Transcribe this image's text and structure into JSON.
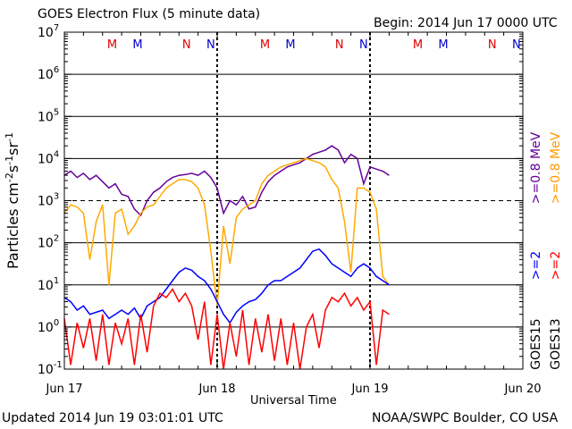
{
  "chart_data": {
    "type": "line",
    "title": "GOES Electron Flux (5 minute data)",
    "begin": "Begin: 2014 Jun 17 0000 UTC",
    "xlabel": "Universal Time",
    "ylabel_parts": [
      "Particles cm",
      "-2",
      "s",
      "-1",
      "sr",
      "-1"
    ],
    "x_ticks": [
      "Jun 17",
      "Jun 18",
      "Jun 19",
      "Jun 20"
    ],
    "xlim": [
      0,
      72
    ],
    "ylim_exp": [
      -1,
      7
    ],
    "y_tick_labels": [
      {
        "base": "10",
        "exp": "-1"
      },
      {
        "base": "10",
        "exp": "0"
      },
      {
        "base": "10",
        "exp": "1"
      },
      {
        "base": "10",
        "exp": "2"
      },
      {
        "base": "10",
        "exp": "3"
      },
      {
        "base": "10",
        "exp": "4"
      },
      {
        "base": "10",
        "exp": "5"
      },
      {
        "base": "10",
        "exp": "6"
      },
      {
        "base": "10",
        "exp": "7"
      }
    ],
    "day_boundaries_h": [
      24,
      48
    ],
    "threshold_exp": 3,
    "mn_markers": [
      {
        "h": 7.5,
        "label": "M",
        "color": "#dd0000"
      },
      {
        "h": 11.5,
        "label": "M",
        "color": "#0000cc"
      },
      {
        "h": 19.2,
        "label": "N",
        "color": "#dd0000"
      },
      {
        "h": 23.0,
        "label": "N",
        "color": "#0000cc"
      },
      {
        "h": 31.5,
        "label": "M",
        "color": "#dd0000"
      },
      {
        "h": 35.5,
        "label": "M",
        "color": "#0000cc"
      },
      {
        "h": 43.2,
        "label": "N",
        "color": "#dd0000"
      },
      {
        "h": 47.0,
        "label": "N",
        "color": "#0000cc"
      },
      {
        "h": 55.5,
        "label": "M",
        "color": "#dd0000"
      },
      {
        "h": 59.5,
        "label": "M",
        "color": "#0000cc"
      },
      {
        "h": 67.2,
        "label": "N",
        "color": "#dd0000"
      },
      {
        "h": 71.0,
        "label": "N",
        "color": "#0000cc"
      }
    ],
    "side_labels": [
      {
        "text": ">=0.8 MeV",
        "color": "#660099"
      },
      {
        "text": ">=0.8 MeV",
        "color": "#ff9900"
      },
      {
        "text": ">=2",
        "color": "#0000ff"
      },
      {
        "text": ">=2",
        "color": "#ff0000"
      },
      {
        "text": "GOES15",
        "color": "#000000"
      },
      {
        "text": "GOES13",
        "color": "#000000"
      }
    ],
    "series": [
      {
        "name": "GOES15 >=0.8 MeV",
        "color": "#660099",
        "x": [
          0,
          1,
          2,
          3,
          4,
          5,
          6,
          7,
          8,
          9,
          10,
          11,
          12,
          13,
          14,
          15,
          16,
          17,
          18,
          19,
          20,
          21,
          22,
          23,
          24,
          25,
          26,
          27,
          28,
          29,
          30,
          31,
          32,
          33,
          34,
          35,
          36,
          37,
          38,
          39,
          40,
          41,
          42,
          43,
          44,
          45,
          46,
          47,
          48,
          49,
          50,
          51
        ],
        "y": [
          3.6,
          3.7,
          3.55,
          3.65,
          3.5,
          3.6,
          3.45,
          3.3,
          3.4,
          3.15,
          3.1,
          2.8,
          2.65,
          3.0,
          3.2,
          3.3,
          3.45,
          3.55,
          3.6,
          3.62,
          3.65,
          3.6,
          3.7,
          3.55,
          3.3,
          2.7,
          3.0,
          2.9,
          3.1,
          2.8,
          2.85,
          3.2,
          3.45,
          3.6,
          3.7,
          3.8,
          3.85,
          3.9,
          4.0,
          4.1,
          4.15,
          4.2,
          4.3,
          4.2,
          3.9,
          4.1,
          4.0,
          3.4,
          3.8,
          3.75,
          3.7,
          3.6
        ]
      },
      {
        "name": "GOES13 >=0.8 MeV",
        "color": "#ffaa00",
        "x": [
          0,
          1,
          2,
          3,
          4,
          5,
          6,
          7,
          8,
          9,
          10,
          11,
          12,
          13,
          14,
          15,
          16,
          17,
          18,
          19,
          20,
          21,
          22,
          23,
          24,
          25,
          26,
          27,
          28,
          29,
          30,
          31,
          32,
          33,
          34,
          35,
          36,
          37,
          38,
          39,
          40,
          41,
          42,
          43,
          44,
          45,
          46,
          47,
          48,
          49,
          50,
          51
        ],
        "y": [
          2.7,
          2.9,
          2.85,
          2.7,
          1.6,
          2.5,
          2.9,
          1.0,
          2.7,
          2.8,
          2.2,
          2.4,
          2.7,
          2.85,
          2.9,
          3.1,
          3.3,
          3.4,
          3.5,
          3.5,
          3.45,
          3.3,
          2.9,
          1.8,
          0.5,
          2.4,
          1.5,
          2.6,
          2.8,
          2.9,
          3.0,
          3.4,
          3.6,
          3.7,
          3.8,
          3.85,
          3.9,
          3.95,
          4.0,
          3.95,
          3.9,
          3.8,
          3.5,
          3.3,
          2.5,
          1.3,
          3.3,
          3.3,
          3.2,
          2.8,
          1.2,
          1.0
        ]
      },
      {
        "name": "GOES15 >=2 MeV",
        "color": "#0000ff",
        "x": [
          0,
          1,
          2,
          3,
          4,
          5,
          6,
          7,
          8,
          9,
          10,
          11,
          12,
          13,
          14,
          15,
          16,
          17,
          18,
          19,
          20,
          21,
          22,
          23,
          24,
          25,
          26,
          27,
          28,
          29,
          30,
          31,
          32,
          33,
          34,
          35,
          36,
          37,
          38,
          39,
          40,
          41,
          42,
          43,
          44,
          45,
          46,
          47,
          48,
          49,
          50,
          51
        ],
        "y": [
          0.7,
          0.6,
          0.4,
          0.5,
          0.3,
          0.35,
          0.4,
          0.2,
          0.3,
          0.4,
          0.3,
          0.45,
          0.2,
          0.5,
          0.6,
          0.7,
          0.9,
          1.1,
          1.3,
          1.4,
          1.35,
          1.2,
          1.1,
          0.9,
          0.6,
          0.3,
          0.1,
          0.35,
          0.5,
          0.6,
          0.65,
          0.8,
          1.0,
          1.1,
          1.1,
          1.2,
          1.3,
          1.4,
          1.6,
          1.8,
          1.85,
          1.7,
          1.5,
          1.4,
          1.3,
          1.2,
          1.4,
          1.5,
          1.4,
          1.2,
          1.1,
          1.0
        ]
      },
      {
        "name": "GOES13 >=2 MeV",
        "color": "#ff0000",
        "x": [
          0,
          1,
          2,
          3,
          4,
          5,
          6,
          7,
          8,
          9,
          10,
          11,
          12,
          13,
          14,
          15,
          16,
          17,
          18,
          19,
          20,
          21,
          22,
          23,
          24,
          25,
          26,
          27,
          28,
          29,
          30,
          31,
          32,
          33,
          34,
          35,
          36,
          37,
          38,
          39,
          40,
          41,
          42,
          43,
          44,
          45,
          46,
          47,
          48,
          49,
          50,
          51
        ],
        "y": [
          0.2,
          -0.9,
          0.1,
          -0.5,
          0.2,
          -0.8,
          0.3,
          -0.9,
          0.1,
          -0.4,
          0.2,
          -0.9,
          0.3,
          -0.6,
          0.5,
          0.8,
          0.7,
          0.9,
          0.6,
          0.8,
          0.5,
          -0.3,
          0.6,
          -0.9,
          0.3,
          -1.0,
          0.1,
          -0.7,
          0.4,
          -0.9,
          0.2,
          -0.6,
          0.3,
          -0.8,
          0.2,
          -0.9,
          0.1,
          -1.0,
          0.0,
          0.3,
          -0.5,
          0.4,
          0.7,
          0.6,
          0.8,
          0.5,
          0.7,
          0.4,
          0.6,
          -0.9,
          0.4,
          0.3
        ]
      }
    ]
  },
  "footer": {
    "updated": "Updated 2014 Jun 19 03:01:01 UTC",
    "credit": "NOAA/SWPC Boulder, CO USA"
  }
}
